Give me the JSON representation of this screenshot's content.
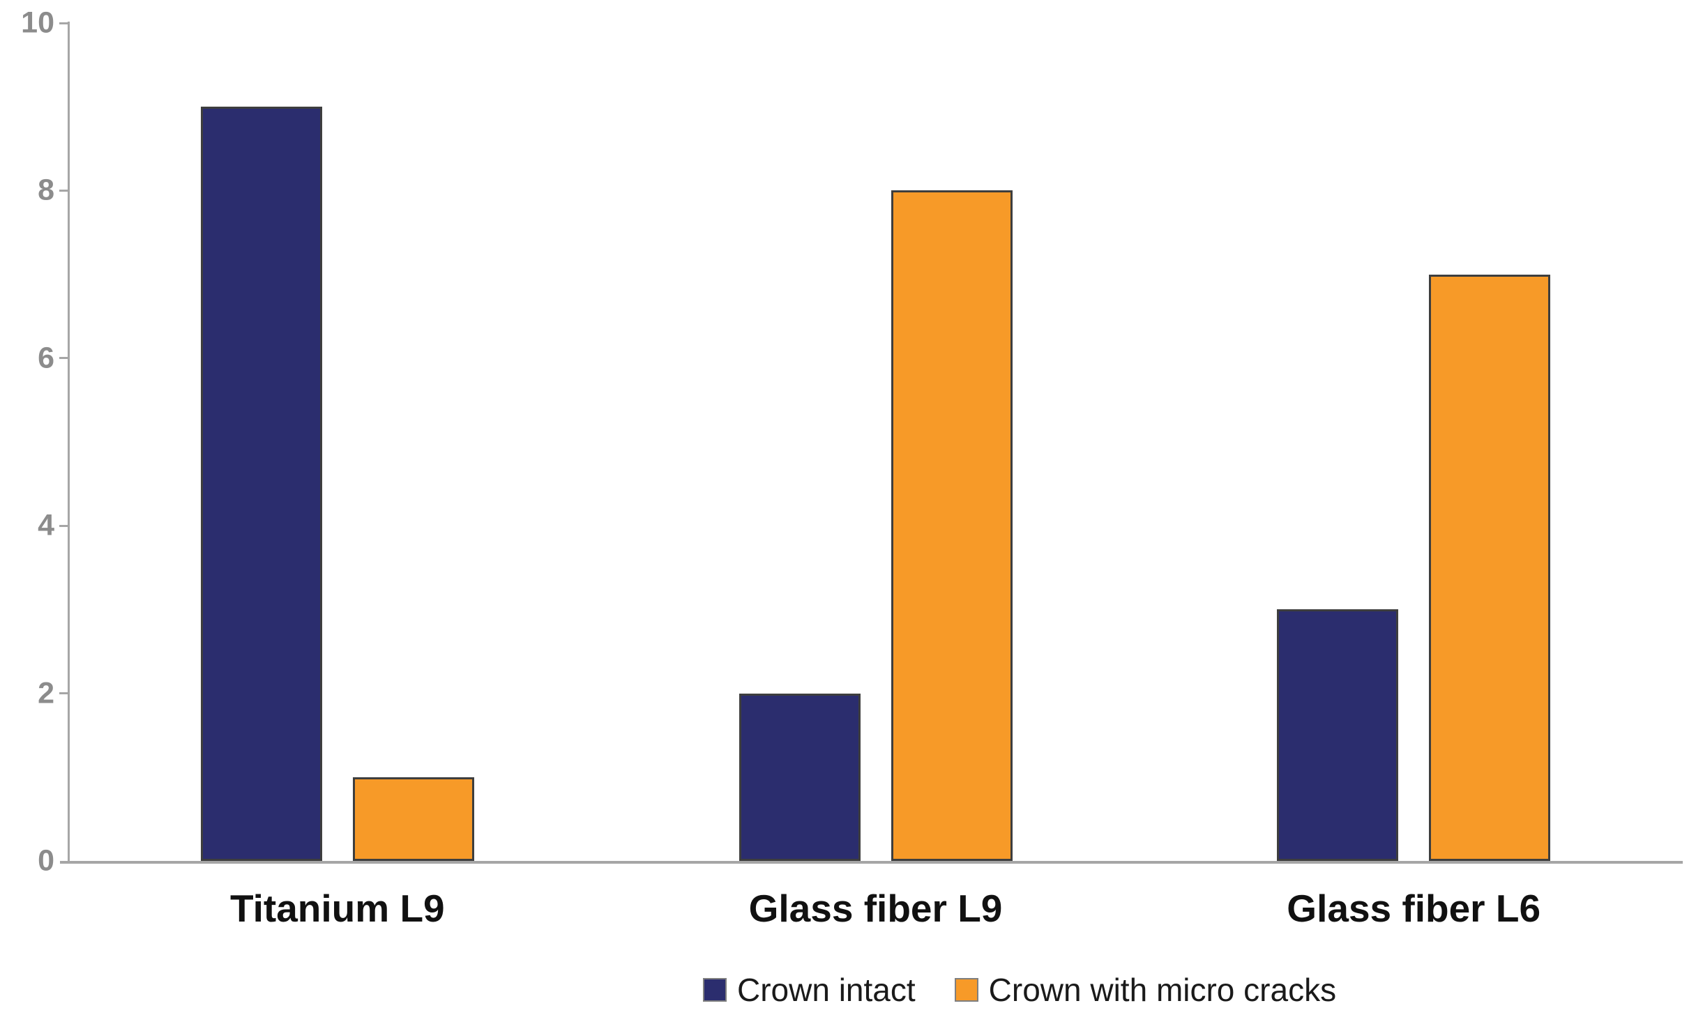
{
  "chart_data": {
    "type": "bar",
    "title": "",
    "xlabel": "",
    "ylabel": "",
    "categories": [
      "Titanium L9",
      "Glass fiber L9",
      "Glass fiber L6"
    ],
    "series": [
      {
        "name": "Crown intact",
        "color": "#2B2D6E",
        "values": [
          9,
          2,
          3
        ]
      },
      {
        "name": "Crown with micro cracks",
        "color": "#F79A28",
        "values": [
          1,
          8,
          7
        ]
      }
    ],
    "ylim": [
      0,
      10
    ],
    "yticks": [
      0,
      2,
      4,
      6,
      8,
      10
    ],
    "grid": false,
    "legend_position": "bottom",
    "axis_color": "#A6A6A6",
    "tick_label_color": "#8C8C8C",
    "bar_border_color": "#3E3E3E",
    "category_label_color": "#111111",
    "legend_text_color": "#1A1A1A"
  }
}
